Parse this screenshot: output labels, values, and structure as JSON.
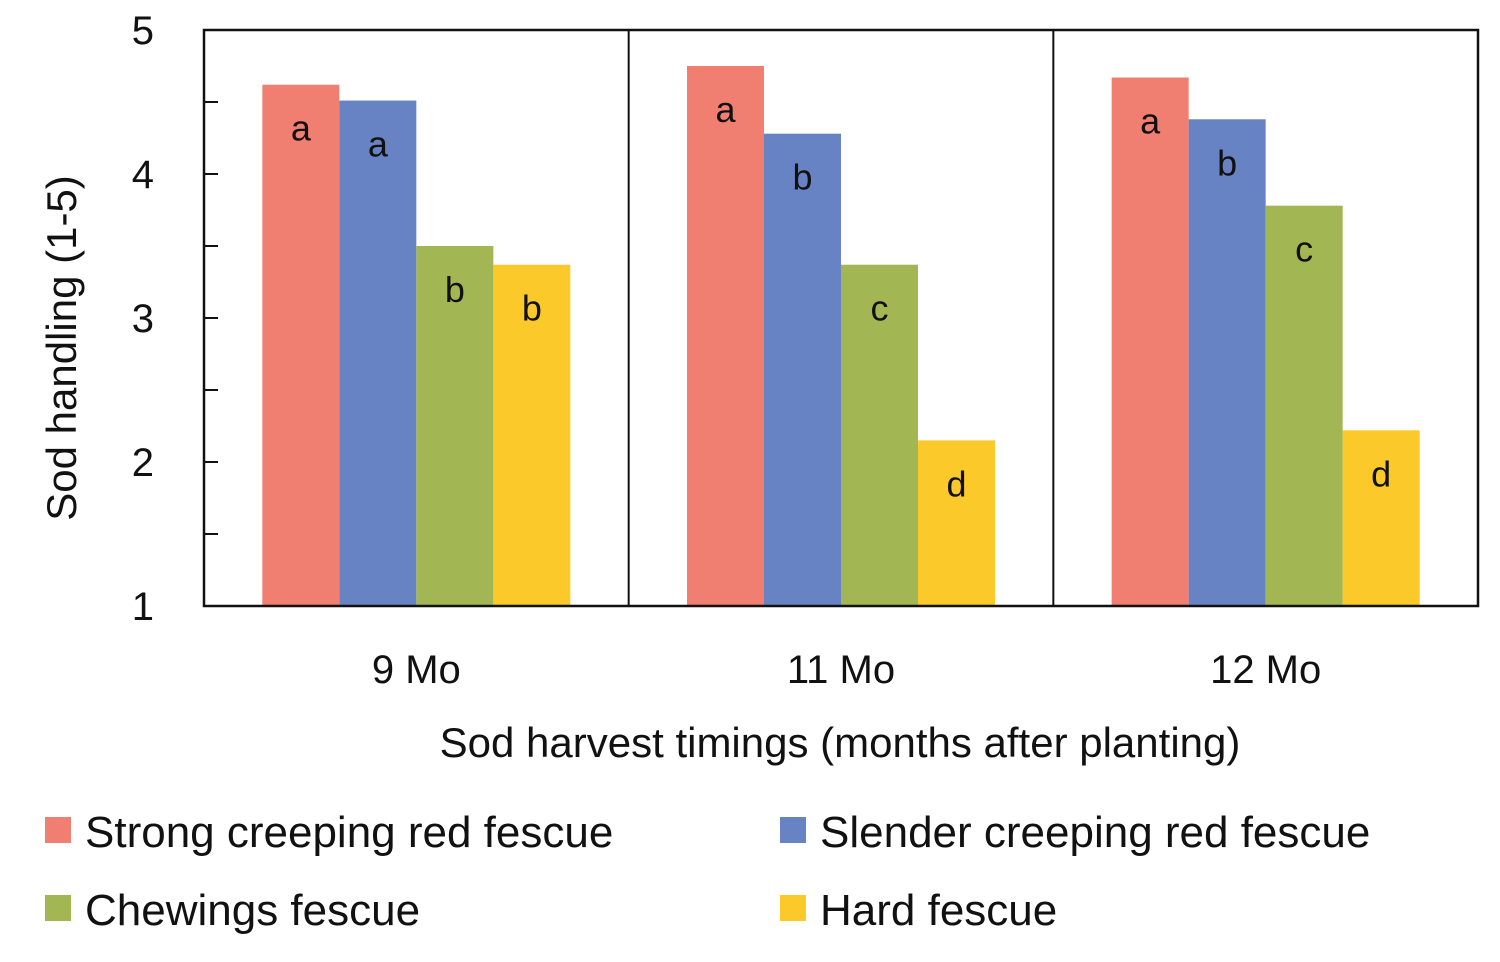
{
  "chart_data": {
    "type": "bar",
    "title": "",
    "xlabel": "Sod harvest timings (months after planting)",
    "ylabel": "Sod handling (1-5)",
    "ylim": [
      1,
      5
    ],
    "yticks": [
      "1",
      "2",
      "3",
      "4",
      "5"
    ],
    "categories": [
      "9 Mo",
      "11 Mo",
      "12 Mo"
    ],
    "series": [
      {
        "name": "Strong creeping red fescue",
        "color": "#F07F72",
        "values": [
          4.62,
          4.75,
          4.67
        ],
        "letters": [
          "a",
          "a",
          "a"
        ]
      },
      {
        "name": "Slender creeping red fescue",
        "color": "#6883C4",
        "values": [
          4.51,
          4.28,
          4.38
        ],
        "letters": [
          "a",
          "b",
          "b"
        ]
      },
      {
        "name": "Chewings fescue",
        "color": "#A2B754",
        "values": [
          3.5,
          3.37,
          3.78
        ],
        "letters": [
          "b",
          "c",
          "c"
        ]
      },
      {
        "name": "Hard fescue",
        "color": "#FBC92A",
        "values": [
          3.37,
          2.15,
          2.22
        ],
        "letters": [
          "b",
          "d",
          "d"
        ]
      }
    ],
    "grid": false,
    "legend_position": "bottom"
  }
}
